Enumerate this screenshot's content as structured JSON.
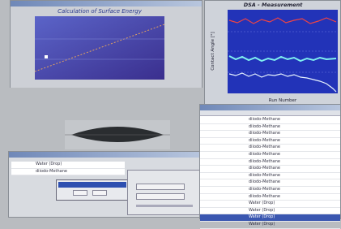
{
  "windows": {
    "surface_energy": {
      "title": "Calculation of Surface Energy"
    },
    "measurement": {
      "title": "DSA - Measurement",
      "y_label": "Contact Angle [°]",
      "x_label": "Run Number"
    },
    "calculation_table": {
      "rows": [
        "Water (Drop)",
        "diiodo-Methane"
      ]
    },
    "results_list": {
      "rows": [
        "diiodo-Methane",
        "diiodo-Methane",
        "diiodo-Methane",
        "diiodo-Methane",
        "diiodo-Methane",
        "diiodo-Methane",
        "diiodo-Methane",
        "diiodo-Methane",
        "diiodo-Methane",
        "diiodo-Methane",
        "diiodo-Methane",
        "diiodo-Methane",
        "Water (Drop)",
        "Water (Drop)",
        "Water (Drop)",
        "Water (Drop)"
      ]
    }
  }
}
